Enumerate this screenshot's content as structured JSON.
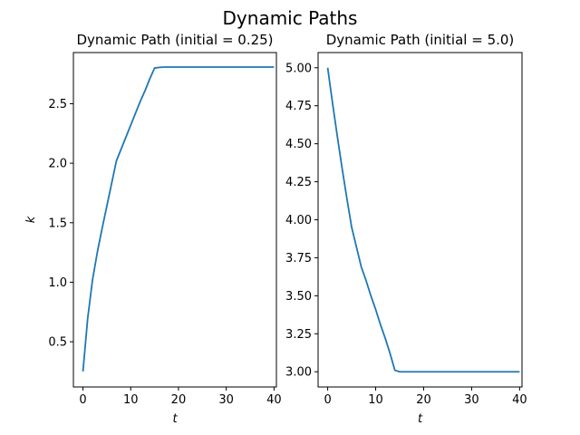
{
  "figure": {
    "title": "Dynamic Paths"
  },
  "chart_data": [
    {
      "type": "line",
      "title": "Dynamic Path (initial = 0.25)",
      "xlabel": "t",
      "ylabel": "k",
      "xlim": [
        -2,
        40.5
      ],
      "ylim": [
        0.12,
        2.93
      ],
      "xticks": [
        0,
        10,
        20,
        30,
        40
      ],
      "xtick_labels": [
        "0",
        "10",
        "20",
        "30",
        "40"
      ],
      "yticks": [
        0.5,
        1.0,
        1.5,
        2.0,
        2.5
      ],
      "ytick_labels": [
        "0.5",
        "1.0",
        "1.5",
        "2.0",
        "2.5"
      ],
      "grid": false,
      "series": [
        {
          "color": "#1f77b4",
          "x": [
            0,
            1,
            2,
            3,
            4,
            5,
            6,
            7,
            8,
            9,
            10,
            11,
            12,
            13,
            14,
            15,
            16,
            17,
            18,
            19,
            20,
            21,
            22,
            23,
            24,
            25,
            26,
            27,
            28,
            29,
            30,
            31,
            32,
            33,
            34,
            35,
            36,
            37,
            38,
            39,
            40
          ],
          "y": [
            0.25,
            0.7,
            1.02,
            1.25,
            1.45,
            1.64,
            1.83,
            2.02,
            2.12,
            2.22,
            2.32,
            2.42,
            2.52,
            2.61,
            2.71,
            2.8,
            2.805,
            2.808,
            2.808,
            2.808,
            2.808,
            2.808,
            2.808,
            2.808,
            2.808,
            2.808,
            2.808,
            2.808,
            2.808,
            2.808,
            2.808,
            2.808,
            2.808,
            2.808,
            2.808,
            2.808,
            2.808,
            2.808,
            2.808,
            2.808,
            2.808
          ]
        }
      ]
    },
    {
      "type": "line",
      "title": "Dynamic Path (initial = 5.0)",
      "xlabel": "t",
      "ylabel": "",
      "xlim": [
        -2,
        40.5
      ],
      "ylim": [
        2.9,
        5.1
      ],
      "xticks": [
        0,
        10,
        20,
        30,
        40
      ],
      "xtick_labels": [
        "0",
        "10",
        "20",
        "30",
        "40"
      ],
      "yticks": [
        3.0,
        3.25,
        3.5,
        3.75,
        4.0,
        4.25,
        4.5,
        4.75,
        5.0
      ],
      "ytick_labels": [
        "3.00",
        "3.25",
        "3.50",
        "3.75",
        "4.00",
        "4.25",
        "4.50",
        "4.75",
        "5.00"
      ],
      "grid": false,
      "series": [
        {
          "color": "#1f77b4",
          "x": [
            0,
            1,
            2,
            3,
            4,
            5,
            6,
            7,
            8,
            9,
            10,
            11,
            12,
            13,
            14,
            15,
            16,
            17,
            18,
            19,
            20,
            21,
            22,
            23,
            24,
            25,
            26,
            27,
            28,
            29,
            30,
            31,
            32,
            33,
            34,
            35,
            36,
            37,
            38,
            39,
            40
          ],
          "y": [
            5.0,
            4.77,
            4.55,
            4.34,
            4.14,
            3.95,
            3.82,
            3.69,
            3.6,
            3.5,
            3.41,
            3.31,
            3.22,
            3.12,
            3.01,
            3.0,
            3.0,
            3.0,
            3.0,
            3.0,
            3.0,
            3.0,
            3.0,
            3.0,
            3.0,
            3.0,
            3.0,
            3.0,
            3.0,
            3.0,
            3.0,
            3.0,
            3.0,
            3.0,
            3.0,
            3.0,
            3.0,
            3.0,
            3.0,
            3.0,
            3.0
          ]
        }
      ]
    }
  ]
}
